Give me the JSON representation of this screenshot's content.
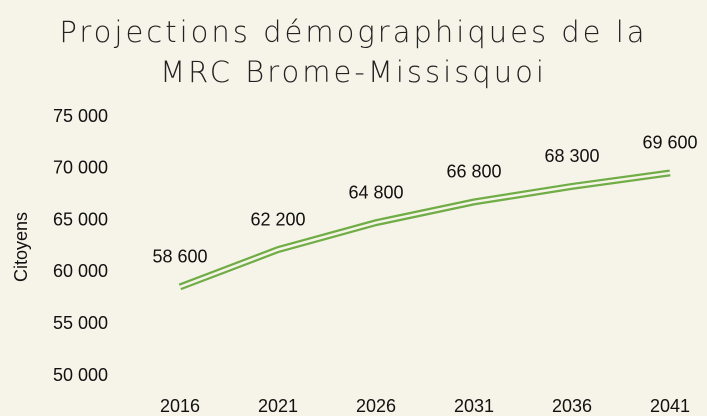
{
  "chart_data": {
    "type": "line",
    "title": "Projections démographiques de la MRC Brome-Missisquoi",
    "y_label": "Citoyens",
    "categories": [
      "2016",
      "2021",
      "2026",
      "2031",
      "2036",
      "2041"
    ],
    "series": [
      {
        "name": "Citoyens",
        "color": "#70ad47",
        "values": [
          58600,
          62200,
          64800,
          66800,
          68300,
          69600
        ],
        "value_labels": [
          "58 600",
          "62 200",
          "64 800",
          "66 800",
          "68 300",
          "69 600"
        ]
      }
    ],
    "ylim": [
      50000,
      75000
    ],
    "yticks": [
      {
        "value": 50000,
        "label": "50 000"
      },
      {
        "value": 55000,
        "label": "55 000"
      },
      {
        "value": 60000,
        "label": "60 000"
      },
      {
        "value": 65000,
        "label": "65 000"
      },
      {
        "value": 70000,
        "label": "70 000"
      },
      {
        "value": 75000,
        "label": "75 000"
      }
    ],
    "grid": false
  }
}
